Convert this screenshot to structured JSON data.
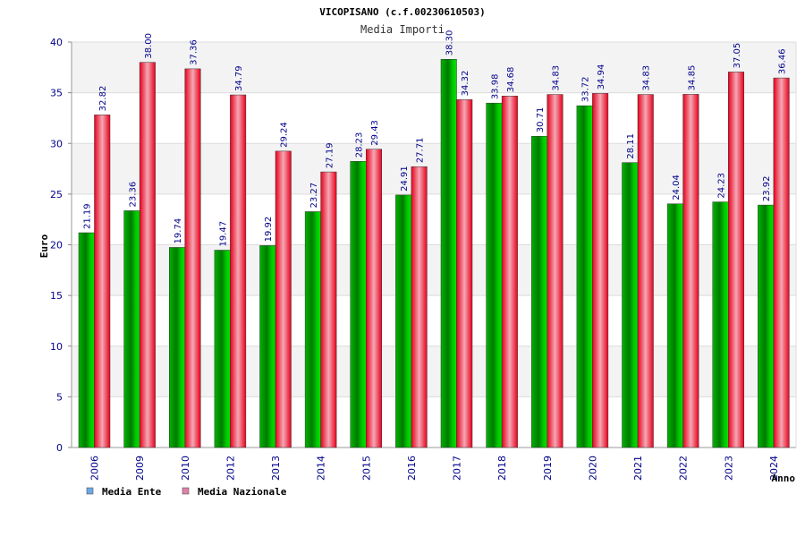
{
  "chart_data": {
    "type": "bar",
    "title": "VICOPISANO (c.f.00230610503)",
    "subtitle": "Media Importi",
    "xlabel": "Anno",
    "ylabel": "Euro",
    "ylim": [
      0,
      40
    ],
    "yticks": [
      "0",
      "5",
      "10",
      "15",
      "20",
      "25",
      "30",
      "35",
      "40"
    ],
    "grid": true,
    "legend_position": "bottom-left",
    "categories": [
      "2006",
      "2009",
      "2010",
      "2012",
      "2013",
      "2014",
      "2015",
      "2016",
      "2017",
      "2018",
      "2019",
      "2020",
      "2021",
      "2022",
      "2023",
      "2024"
    ],
    "series": [
      {
        "name": "Media Ente",
        "color": "#00a000",
        "legend_color": "#6aa8e8",
        "values": [
          21.19,
          23.36,
          19.74,
          19.47,
          19.92,
          23.27,
          28.23,
          24.91,
          38.3,
          33.98,
          30.71,
          33.72,
          28.11,
          24.04,
          24.23,
          23.92
        ],
        "labels": [
          "21.19",
          "23.36",
          "19.74",
          "19.47",
          "19.92",
          "23.27",
          "28.23",
          "24.91",
          "38.30",
          "33.98",
          "30.71",
          "33.72",
          "28.11",
          "24.04",
          "24.23",
          "23.92"
        ]
      },
      {
        "name": "Media Nazionale",
        "color": "#e8001c",
        "legend_color": "#e080a8",
        "values": [
          32.82,
          38.0,
          37.36,
          34.79,
          29.24,
          27.19,
          29.43,
          27.71,
          34.32,
          34.68,
          34.83,
          34.94,
          34.83,
          34.85,
          37.05,
          36.46
        ],
        "labels": [
          "32.82",
          "38.00",
          "37.36",
          "34.79",
          "29.24",
          "27.19",
          "29.43",
          "27.71",
          "34.32",
          "34.68",
          "34.83",
          "34.94",
          "34.83",
          "34.85",
          "37.05",
          "36.46"
        ]
      }
    ]
  }
}
